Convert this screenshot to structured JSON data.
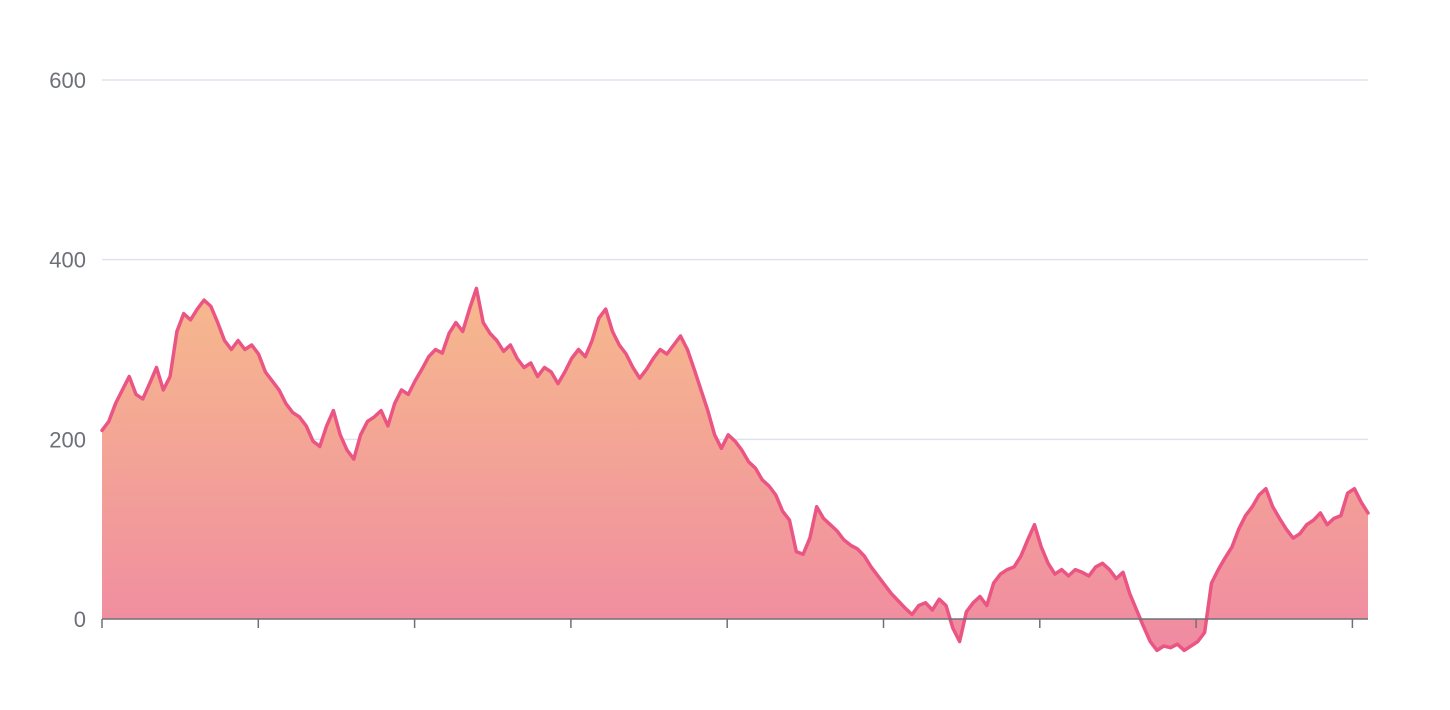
{
  "chart_data": {
    "type": "area",
    "title": "",
    "xlabel": "",
    "ylabel": "",
    "ylim": [
      -60,
      600
    ],
    "yticks": [
      0,
      200,
      400,
      600
    ],
    "xtick_count": 9,
    "grid": true,
    "legend": "none",
    "series": [
      {
        "values": [
          210,
          220,
          240,
          255,
          270,
          250,
          245,
          262,
          280,
          255,
          270,
          320,
          340,
          333,
          345,
          355,
          348,
          330,
          310,
          300,
          310,
          300,
          305,
          295,
          275,
          265,
          255,
          240,
          230,
          225,
          215,
          198,
          192,
          215,
          232,
          205,
          188,
          178,
          205,
          220,
          225,
          232,
          215,
          240,
          255,
          250,
          265,
          278,
          292,
          300,
          296,
          318,
          330,
          320,
          345,
          368,
          330,
          318,
          310,
          298,
          305,
          290,
          280,
          285,
          270,
          280,
          275,
          262,
          275,
          290,
          300,
          292,
          310,
          335,
          345,
          320,
          305,
          295,
          280,
          268,
          278,
          290,
          300,
          295,
          305,
          315,
          300,
          278,
          255,
          232,
          205,
          190,
          205,
          198,
          188,
          175,
          168,
          155,
          148,
          138,
          120,
          110,
          75,
          72,
          90,
          125,
          112,
          105,
          98,
          88,
          82,
          78,
          70,
          58,
          48,
          38,
          28,
          20,
          12,
          5,
          15,
          18,
          10,
          22,
          15,
          -10,
          -25,
          8,
          18,
          25,
          15,
          40,
          50,
          55,
          58,
          70,
          88,
          105,
          80,
          62,
          50,
          55,
          48,
          55,
          52,
          48,
          58,
          62,
          55,
          45,
          52,
          28,
          10,
          -8,
          -25,
          -35,
          -30,
          -32,
          -28,
          -35,
          -30,
          -25,
          -15,
          40,
          55,
          68,
          80,
          100,
          115,
          125,
          138,
          145,
          125,
          112,
          100,
          90,
          95,
          105,
          110,
          118,
          105,
          112,
          115,
          140,
          145,
          130,
          118
        ]
      }
    ]
  }
}
